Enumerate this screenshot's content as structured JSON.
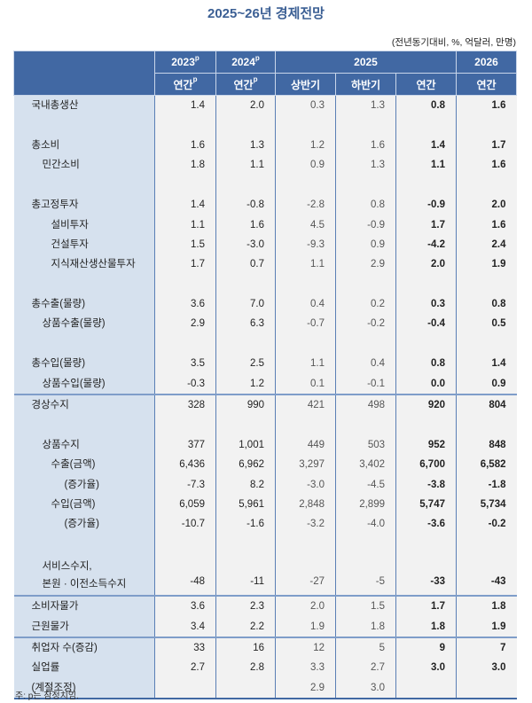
{
  "title": "2025~26년 경제전망",
  "unit_note": "(전년동기대비, %, 억달러, 만명)",
  "header": {
    "years": [
      {
        "label": "2023",
        "sup": "p"
      },
      {
        "label": "2024",
        "sup": "p"
      },
      {
        "label": "2025",
        "sup": ""
      },
      {
        "label": "2026",
        "sup": ""
      }
    ],
    "sub": [
      {
        "label": "연간",
        "sup": "p"
      },
      {
        "label": "연간",
        "sup": "p"
      },
      {
        "label": "상반기",
        "sup": ""
      },
      {
        "label": "하반기",
        "sup": ""
      },
      {
        "label": "연간",
        "sup": ""
      },
      {
        "label": "연간",
        "sup": ""
      }
    ]
  },
  "rows": [
    {
      "label": "국내총생산",
      "values": [
        "1.4",
        "2.0",
        "0.3",
        "1.3",
        "0.8",
        "1.6"
      ]
    },
    {
      "label": "",
      "values": [
        "",
        "",
        "",
        "",
        "",
        ""
      ]
    },
    {
      "label": "총소비",
      "values": [
        "1.6",
        "1.3",
        "1.2",
        "1.6",
        "1.4",
        "1.7"
      ]
    },
    {
      "label": "민간소비",
      "values": [
        "1.8",
        "1.1",
        "0.9",
        "1.3",
        "1.1",
        "1.6"
      ]
    },
    {
      "label": "",
      "values": [
        "",
        "",
        "",
        "",
        "",
        ""
      ]
    },
    {
      "label": "총고정투자",
      "values": [
        "1.4",
        "-0.8",
        "-2.8",
        "0.8",
        "-0.9",
        "2.0"
      ]
    },
    {
      "label": "설비투자",
      "values": [
        "1.1",
        "1.6",
        "4.5",
        "-0.9",
        "1.7",
        "1.6"
      ]
    },
    {
      "label": "건설투자",
      "values": [
        "1.5",
        "-3.0",
        "-9.3",
        "0.9",
        "-4.2",
        "2.4"
      ]
    },
    {
      "label": "지식재산생산물투자",
      "values": [
        "1.7",
        "0.7",
        "1.1",
        "2.9",
        "2.0",
        "1.9"
      ]
    },
    {
      "label": "",
      "values": [
        "",
        "",
        "",
        "",
        "",
        ""
      ]
    },
    {
      "label": "총수출(물량)",
      "values": [
        "3.6",
        "7.0",
        "0.4",
        "0.2",
        "0.3",
        "0.8"
      ]
    },
    {
      "label": "상품수출(물량)",
      "values": [
        "2.9",
        "6.3",
        "-0.7",
        "-0.2",
        "-0.4",
        "0.5"
      ]
    },
    {
      "label": "",
      "values": [
        "",
        "",
        "",
        "",
        "",
        ""
      ]
    },
    {
      "label": "총수입(물량)",
      "values": [
        "3.5",
        "2.5",
        "1.1",
        "0.4",
        "0.8",
        "1.4"
      ]
    },
    {
      "label": "상품수입(물량)",
      "values": [
        "-0.3",
        "1.2",
        "0.1",
        "-0.1",
        "0.0",
        "0.9"
      ]
    },
    {
      "label": "경상수지",
      "values": [
        "328",
        "990",
        "421",
        "498",
        "920",
        "804"
      ]
    },
    {
      "label": "",
      "values": [
        "",
        "",
        "",
        "",
        "",
        ""
      ]
    },
    {
      "label": "상품수지",
      "values": [
        "377",
        "1,001",
        "449",
        "503",
        "952",
        "848"
      ]
    },
    {
      "label": "수출(금액)",
      "values": [
        "6,436",
        "6,962",
        "3,297",
        "3,402",
        "6,700",
        "6,582"
      ]
    },
    {
      "label": "(증가율)",
      "values": [
        "-7.3",
        "8.2",
        "-3.0",
        "-4.5",
        "-3.8",
        "-1.8"
      ]
    },
    {
      "label": "수입(금액)",
      "values": [
        "6,059",
        "5,961",
        "2,848",
        "2,899",
        "5,747",
        "5,734"
      ]
    },
    {
      "label": "(증가율)",
      "values": [
        "-10.7",
        "-1.6",
        "-3.2",
        "-4.0",
        "-3.6",
        "-0.2"
      ]
    },
    {
      "label": "",
      "values": [
        "",
        "",
        "",
        "",
        "",
        ""
      ]
    },
    {
      "label": "서비스수지,",
      "label2": "본원 · 이전소득수지",
      "values": [
        "-48",
        "-11",
        "-27",
        "-5",
        "-33",
        "-43"
      ]
    },
    {
      "label": "소비자물가",
      "values": [
        "3.6",
        "2.3",
        "2.0",
        "1.5",
        "1.7",
        "1.8"
      ]
    },
    {
      "label": "근원물가",
      "values": [
        "3.4",
        "2.2",
        "1.9",
        "1.8",
        "1.8",
        "1.9"
      ]
    },
    {
      "label": "취업자 수(증감)",
      "values": [
        "33",
        "16",
        "12",
        "5",
        "9",
        "7"
      ]
    },
    {
      "label": "실업률",
      "values": [
        "2.7",
        "2.8",
        "3.3",
        "2.7",
        "3.0",
        "3.0"
      ]
    },
    {
      "label": "(계절조정)",
      "values": [
        "",
        "",
        "2.9",
        "3.0",
        "",
        ""
      ]
    }
  ],
  "footnote": "주: p는 잠정치임."
}
